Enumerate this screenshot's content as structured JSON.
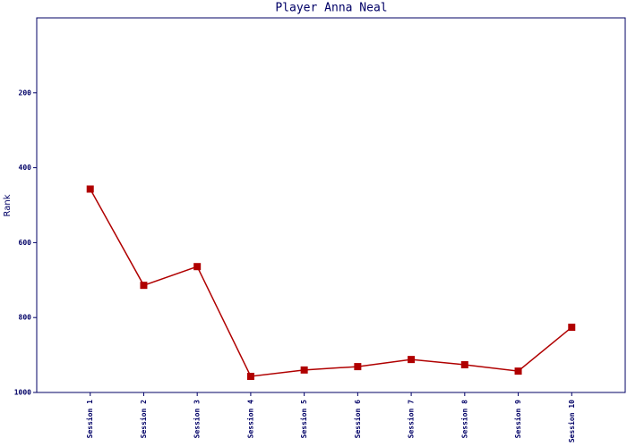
{
  "chart_data": {
    "type": "line",
    "title": "Player Anna Neal",
    "y_label": "Rank",
    "categories": [
      "Session 1",
      "Session 2",
      "Session 3",
      "Session 4",
      "Session 5",
      "Session 6",
      "Session 7",
      "Session 8",
      "Session 9",
      "Session 10"
    ],
    "series": [
      {
        "name": "Rank",
        "color": "#b00000",
        "values": [
          457,
          714,
          664,
          957,
          940,
          931,
          912,
          926,
          943,
          826
        ]
      }
    ],
    "ylim": [
      0,
      1000
    ],
    "yticks": [
      200,
      400,
      600,
      800,
      1000
    ],
    "y_inverted": true,
    "grid": false
  }
}
